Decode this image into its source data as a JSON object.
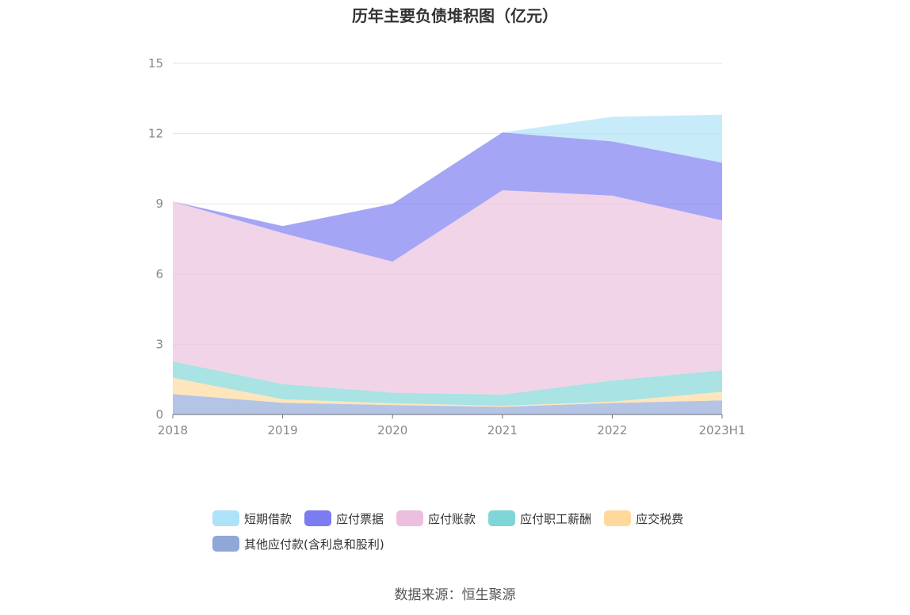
{
  "chart_data": {
    "type": "area",
    "stacked": true,
    "title": "历年主要负债堆积图（亿元）",
    "categories": [
      "2018",
      "2019",
      "2020",
      "2021",
      "2022",
      "2023H1"
    ],
    "ylim": [
      0,
      15
    ],
    "yticks": [
      0,
      3,
      6,
      9,
      12,
      15
    ],
    "grid": true,
    "legend_position": "bottom",
    "series": [
      {
        "name": "其他应付款(含利息和股利)",
        "color": "#8fa8d8",
        "values": [
          0.87,
          0.5,
          0.4,
          0.33,
          0.49,
          0.6
        ]
      },
      {
        "name": "应交税费",
        "color": "#ffd99b",
        "values": [
          0.7,
          0.15,
          0.08,
          0.04,
          0.06,
          0.37
        ]
      },
      {
        "name": "应付职工薪酬",
        "color": "#80d6d6",
        "values": [
          0.7,
          0.65,
          0.45,
          0.48,
          0.9,
          0.92
        ]
      },
      {
        "name": "应付账款",
        "color": "#ebbfdd",
        "values": [
          6.83,
          6.45,
          5.6,
          8.73,
          7.9,
          6.4
        ]
      },
      {
        "name": "应付票据",
        "color": "#7b7bf2",
        "values": [
          0.0,
          0.3,
          2.47,
          2.47,
          2.32,
          2.47
        ]
      },
      {
        "name": "短期借款",
        "color": "#aee2f8",
        "values": [
          0.0,
          0.0,
          0.0,
          0.0,
          1.05,
          2.05
        ]
      }
    ]
  },
  "legend_rows": [
    [
      {
        "label": "短期借款",
        "color": "#aee2f8"
      },
      {
        "label": "应付票据",
        "color": "#7b7bf2"
      },
      {
        "label": "应付账款",
        "color": "#ebbfdd"
      },
      {
        "label": "应付职工薪酬",
        "color": "#80d6d6"
      },
      {
        "label": "应交税费",
        "color": "#ffd99b"
      }
    ],
    [
      {
        "label": "其他应付款(含利息和股利)",
        "color": "#8fa8d8"
      }
    ]
  ],
  "source": "数据来源：恒生聚源"
}
